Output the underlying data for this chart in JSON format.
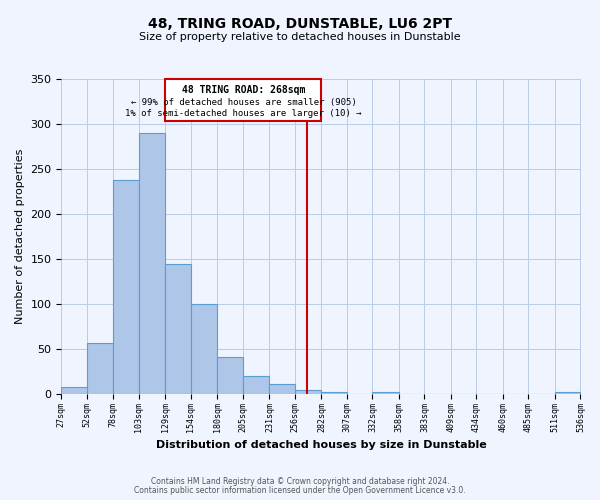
{
  "title": "48, TRING ROAD, DUNSTABLE, LU6 2PT",
  "subtitle": "Size of property relative to detached houses in Dunstable",
  "xlabel": "Distribution of detached houses by size in Dunstable",
  "ylabel": "Number of detached properties",
  "bar_color": "#aec6e8",
  "bar_edge_color": "#5a9fd4",
  "bin_edges": [
    27,
    52,
    78,
    103,
    129,
    154,
    180,
    205,
    231,
    256,
    282,
    307,
    332,
    358,
    383,
    409,
    434,
    460,
    485,
    511,
    536
  ],
  "bar_heights": [
    8,
    57,
    238,
    290,
    145,
    100,
    41,
    20,
    11,
    5,
    2,
    0,
    2,
    0,
    0,
    0,
    0,
    0,
    0,
    2
  ],
  "vline_x": 268,
  "vline_color": "#cc0000",
  "annotation_title": "48 TRING ROAD: 268sqm",
  "annotation_line1": "← 99% of detached houses are smaller (905)",
  "annotation_line2": "1% of semi-detached houses are larger (10) →",
  "annotation_box_color": "#cc0000",
  "ylim": [
    0,
    350
  ],
  "xlim": [
    27,
    536
  ],
  "tick_labels": [
    "27sqm",
    "52sqm",
    "78sqm",
    "103sqm",
    "129sqm",
    "154sqm",
    "180sqm",
    "205sqm",
    "231sqm",
    "256sqm",
    "282sqm",
    "307sqm",
    "332sqm",
    "358sqm",
    "383sqm",
    "409sqm",
    "434sqm",
    "460sqm",
    "485sqm",
    "511sqm",
    "536sqm"
  ],
  "footnote1": "Contains HM Land Registry data © Crown copyright and database right 2024.",
  "footnote2": "Contains public sector information licensed under the Open Government Licence v3.0.",
  "background_color": "#f0f4ff",
  "grid_color": "#b8cce8"
}
